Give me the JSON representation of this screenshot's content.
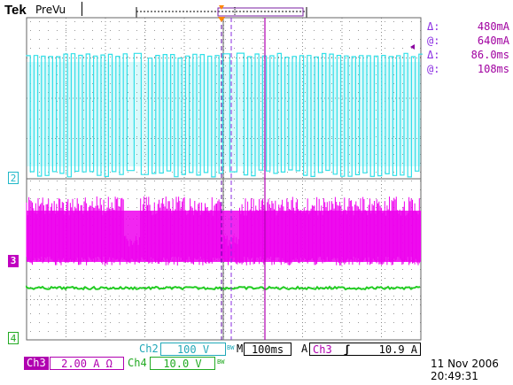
{
  "header": {
    "brand": "Tek",
    "mode": "PreVu"
  },
  "cursor_readout": {
    "amp_delta_label": "Δ:",
    "amp_delta_value": "480mA",
    "amp_at_label": "@:",
    "amp_at_value": "640mA",
    "time_delta_label": "Δ:",
    "time_delta_value": "86.0ms",
    "time_at_label": "@:",
    "time_at_value": "108ms"
  },
  "channel_markers": {
    "ch2": "2",
    "ch3": "3",
    "ch4": "4"
  },
  "settings": {
    "ch2_label": "Ch2",
    "ch2_scale": "100 V",
    "ch3_label": "Ch3",
    "ch3_scale": "2.00 A Ω",
    "ch4_label": "Ch4",
    "ch4_scale": "10.0 V",
    "bw_mark": "BW",
    "timebase_prefix": "M",
    "timebase": "100ms",
    "trigger_prefix": "A",
    "trigger_source": "Ch3",
    "trigger_slope": "ʃ",
    "trigger_level": "10.9 A"
  },
  "timestamp": {
    "date": "11 Nov 2006",
    "time": "20:49:31"
  },
  "colors": {
    "ch2": "#33e0e8",
    "ch3": "#ee00ee",
    "ch4": "#22cc22",
    "grid": "#888888",
    "cursor": "#a000a0"
  },
  "icons": {
    "trigger_position": "trigger-position-marker-icon",
    "cursor_level": "cursor-level-arrow-icon",
    "trigger_slope": "rising-edge-icon"
  }
}
